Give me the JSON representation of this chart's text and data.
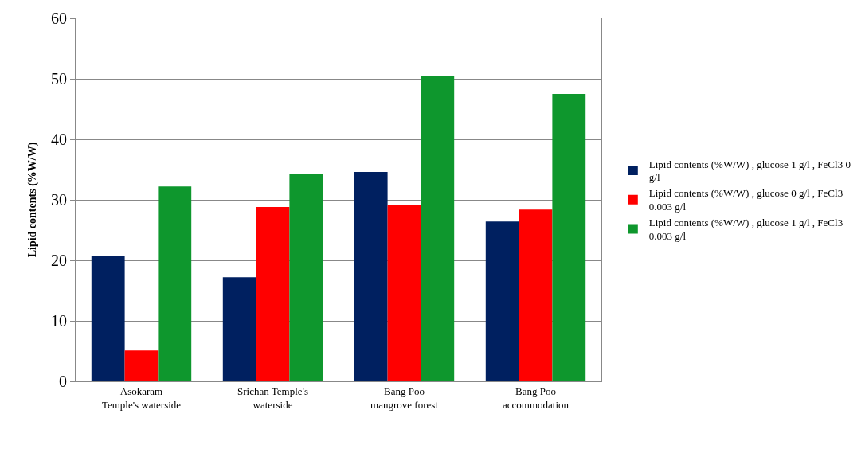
{
  "chart_data": {
    "type": "bar",
    "ylabel": "Lipid contents (%W/W)",
    "categories": [
      "Asokaram\nTemple's waterside",
      "Srichan Temple's\nwaterside",
      "Bang Poo\nmangrove forest",
      "Bang Poo\naccommodation"
    ],
    "series": [
      {
        "name": "Lipid contents (%W/W) , glucose 1 g/l , FeCl3 0 g/l",
        "color": "#002060",
        "values": [
          20.7,
          17.2,
          34.6,
          26.4
        ]
      },
      {
        "name": "Lipid contents (%W/W) , glucose 0 g/l , FeCl3 0.003 g/l",
        "color": "#ff0000",
        "values": [
          5.1,
          28.8,
          29.1,
          28.4
        ]
      },
      {
        "name": "Lipid contents (%W/W) , glucose 1 g/l , FeCl3 0.003 g/l",
        "color": "#0e972d",
        "values": [
          32.2,
          34.3,
          50.5,
          47.5
        ]
      }
    ],
    "ylim": [
      0,
      60
    ],
    "yticks": [
      0,
      10,
      20,
      30,
      40,
      50,
      60
    ],
    "grid": "y",
    "legend": "right"
  }
}
